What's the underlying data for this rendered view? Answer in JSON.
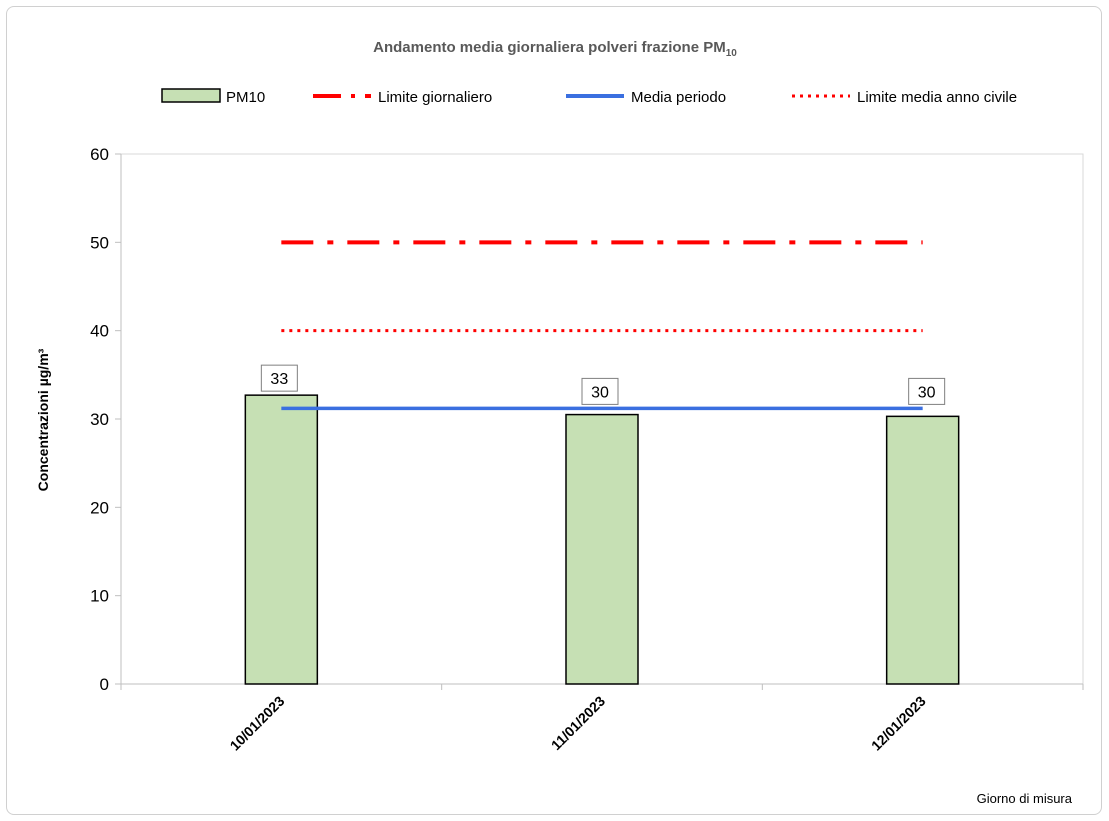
{
  "chart_data": {
    "type": "bar",
    "title_main": "Andamento media giornaliera polveri frazione PM",
    "title_sub": "10",
    "xlabel": "Giorno di misura",
    "ylabel": "Concentrazioni µg/m³",
    "ylim": [
      0,
      60
    ],
    "yticks": [
      0,
      10,
      20,
      30,
      40,
      50,
      60
    ],
    "categories": [
      "10/01/2023",
      "11/01/2023",
      "12/01/2023"
    ],
    "series": [
      {
        "name": "PM10",
        "values": [
          32.7,
          30.5,
          30.3
        ],
        "data_labels": [
          "33",
          "30",
          "30"
        ],
        "color": "#c6e0b4"
      }
    ],
    "lines": [
      {
        "name": "Limite giornaliero",
        "value": 50,
        "style": "dash-dot",
        "color": "#ff0000"
      },
      {
        "name": "Media periodo",
        "value": 31.2,
        "style": "solid",
        "color": "#3a6fe0"
      },
      {
        "name": "Limite media anno civile",
        "value": 40,
        "style": "dotted",
        "color": "#ff0000"
      }
    ],
    "legend_position": "top",
    "grid": false
  }
}
